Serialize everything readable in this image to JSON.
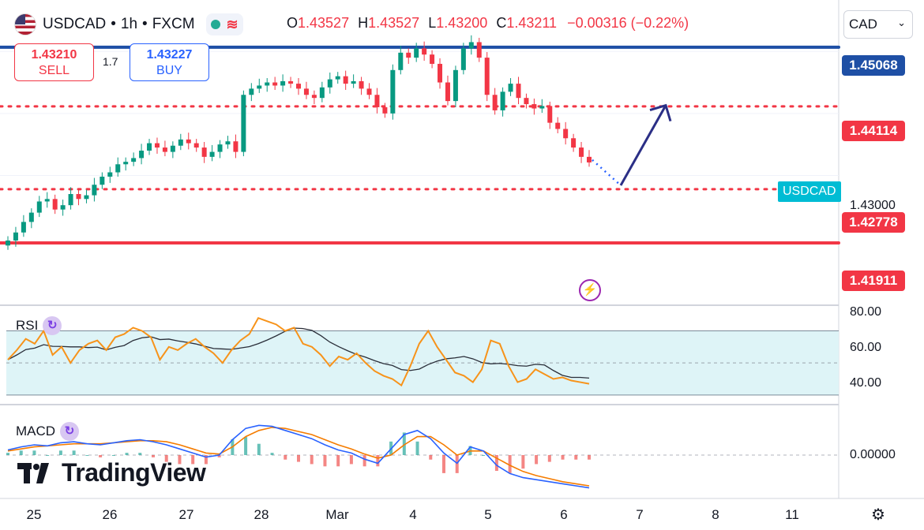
{
  "header": {
    "symbol": "USDCAD",
    "interval": "1h",
    "source": "FXCM",
    "sep1": "•",
    "sep2": "•",
    "open_label": "O",
    "open": "1.43527",
    "high_label": "H",
    "high": "1.43527",
    "low_label": "L",
    "low": "1.43200",
    "close_label": "C",
    "close": "1.43211",
    "change": "−0.00316 (−0.22%)",
    "status_color": "#22ab94"
  },
  "trade": {
    "sell_price": "1.43210",
    "sell_label": "SELL",
    "buy_price": "1.43227",
    "buy_label": "BUY",
    "spread": "1.7"
  },
  "currency_selector": {
    "value": "CAD",
    "icon": "chevron-down-icon"
  },
  "price_axis": {
    "ticks": [
      "1.43000"
    ],
    "labels": [
      {
        "value": "1.45068",
        "color": "#1e4fa5"
      },
      {
        "value": "1.44114",
        "color": "#f23645"
      },
      {
        "value": "1.42778",
        "color": "#f23645"
      },
      {
        "value": "1.41911",
        "color": "#f23645"
      }
    ],
    "symbol_label": "USDCAD"
  },
  "rsi": {
    "title": "RSI",
    "ticks": [
      "80.00",
      "60.00",
      "40.00"
    ]
  },
  "macd": {
    "title": "MACD",
    "ticks": [
      "0.00000"
    ]
  },
  "time_axis": [
    "25",
    "26",
    "27",
    "28",
    "Mar",
    "4",
    "5",
    "6",
    "7",
    "8",
    "11"
  ],
  "logo": {
    "text": "TradingView"
  },
  "chart_data": {
    "type": "candlestick",
    "symbol": "USDCAD",
    "interval": "1h",
    "price_range": [
      1.418,
      1.455
    ],
    "horizontal_levels": [
      {
        "price": 1.45068,
        "style": "solid",
        "color": "#1e4fa5"
      },
      {
        "price": 1.44114,
        "style": "dotted",
        "color": "#f23645"
      },
      {
        "price": 1.42778,
        "style": "dotted",
        "color": "#f23645"
      },
      {
        "price": 1.41911,
        "style": "solid",
        "color": "#f23645"
      }
    ],
    "projection": {
      "path": [
        [
          1.4325
        ],
        [
          1.4284
        ],
        [
          1.4413
        ]
      ],
      "description": "expected dip to 1.4278 then rally to 1.4411"
    },
    "price_path": [
      1.4195,
      1.4208,
      1.4225,
      1.424,
      1.4258,
      1.4262,
      1.4245,
      1.4252,
      1.427,
      1.4262,
      1.4268,
      1.4285,
      1.4298,
      1.4305,
      1.4318,
      1.4322,
      1.4328,
      1.434,
      1.4352,
      1.4345,
      1.4338,
      1.4348,
      1.4358,
      1.4352,
      1.4345,
      1.433,
      1.4338,
      1.435,
      1.4355,
      1.4338,
      1.443,
      1.444,
      1.4445,
      1.445,
      1.4445,
      1.4452,
      1.4448,
      1.444,
      1.443,
      1.4425,
      1.4442,
      1.4455,
      1.446,
      1.4448,
      1.4452,
      1.444,
      1.443,
      1.441,
      1.44,
      1.447,
      1.4498,
      1.449,
      1.4505,
      1.4495,
      1.448,
      1.445,
      1.442,
      1.447,
      1.4505,
      1.4515,
      1.449,
      1.443,
      1.4405,
      1.4435,
      1.4448,
      1.4425,
      1.4415,
      1.4408,
      1.4412,
      1.4385,
      1.4375,
      1.436,
      1.4345,
      1.433,
      1.4321
    ],
    "rsi": {
      "range": [
        25,
        85
      ],
      "band": [
        30,
        70
      ],
      "values": [
        52,
        58,
        65,
        62,
        70,
        55,
        60,
        50,
        58,
        62,
        64,
        58,
        66,
        68,
        72,
        70,
        66,
        52,
        60,
        58,
        62,
        65,
        60,
        56,
        50,
        58,
        64,
        68,
        78,
        76,
        74,
        70,
        72,
        62,
        60,
        55,
        48,
        54,
        52,
        56,
        50,
        45,
        42,
        40,
        36,
        48,
        62,
        70,
        60,
        52,
        44,
        42,
        38,
        46,
        64,
        62,
        48,
        38,
        40,
        46,
        43,
        40,
        41,
        39,
        38,
        37
      ]
    },
    "macd": {
      "zero": 0,
      "macd_line": [
        0.5,
        0.8,
        1.0,
        0.9,
        1.2,
        1.3,
        1.1,
        1.0,
        1.2,
        1.4,
        1.5,
        1.3,
        1.0,
        0.6,
        0.2,
        -0.2,
        0.0,
        1.5,
        2.6,
        2.9,
        2.8,
        2.4,
        2.0,
        1.6,
        1.0,
        0.5,
        0.2,
        -0.4,
        -0.8,
        0.6,
        2.0,
        2.4,
        1.6,
        0.2,
        -0.8,
        0.8,
        0.4,
        -1.0,
        -1.8,
        -2.2,
        -2.4,
        -2.6,
        -2.8,
        -3.0,
        -3.2
      ],
      "signal_line": [
        0.4,
        0.6,
        0.8,
        0.9,
        1.0,
        1.1,
        1.1,
        1.1,
        1.2,
        1.3,
        1.4,
        1.4,
        1.3,
        1.0,
        0.6,
        0.2,
        0.1,
        0.8,
        1.8,
        2.4,
        2.7,
        2.6,
        2.3,
        2.0,
        1.5,
        1.0,
        0.6,
        0.1,
        -0.3,
        0.0,
        1.0,
        1.8,
        1.8,
        1.0,
        0.0,
        0.4,
        0.4,
        -0.3,
        -1.0,
        -1.6,
        -2.0,
        -2.3,
        -2.6,
        -2.8,
        -3.0
      ]
    }
  }
}
